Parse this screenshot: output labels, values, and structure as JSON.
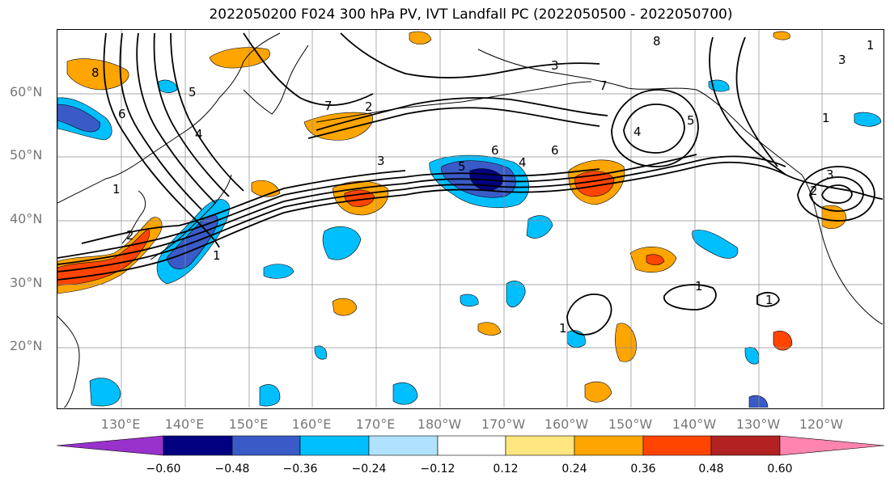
{
  "title": "2022050200 F024 300 hPa PV, IVT Landfall PC (2022050500 - 2022050700)",
  "map": {
    "lat_labels": [
      "60°N",
      "50°N",
      "40°N",
      "30°N",
      "20°N"
    ],
    "lon_labels": [
      "130°E",
      "140°E",
      "150°E",
      "160°E",
      "170°E",
      "180°W",
      "170°W",
      "160°W",
      "150°W",
      "140°W",
      "130°W",
      "120°W"
    ],
    "contour_labels": [
      "8",
      "6",
      "5",
      "4",
      "3",
      "2",
      "1",
      "7",
      "1",
      "6",
      "5",
      "4",
      "3",
      "2",
      "3",
      "1",
      "8",
      "7",
      "6",
      "5",
      "4",
      "2",
      "1",
      "3",
      "1",
      "1",
      "1"
    ],
    "grid": true
  },
  "colorbar": {
    "tick_labels": [
      "−0.60",
      "−0.48",
      "−0.36",
      "−0.24",
      "−0.12",
      "0.12",
      "0.24",
      "0.36",
      "0.48",
      "0.60"
    ],
    "colors": [
      "#9932CC",
      "#000080",
      "#3A5BC7",
      "#00BFFF",
      "#B0E2FF",
      "#FFFFFF",
      "#FFE680",
      "#FFA500",
      "#FF4500",
      "#B22222",
      "#FF85B0"
    ],
    "extend": "both"
  },
  "colors": {
    "contour": "#000000",
    "grid": "#8c8c8c",
    "coast": "#000000",
    "axis_labels": "#777777"
  }
}
